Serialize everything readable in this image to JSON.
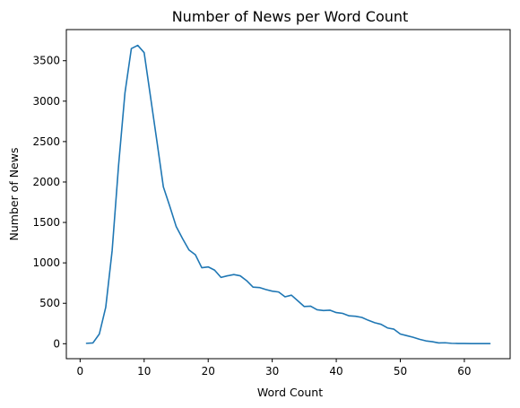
{
  "chart_data": {
    "type": "line",
    "title": "Number of News per Word Count",
    "xlabel": "Word Count",
    "ylabel": "Number of News",
    "xlim": [
      -2.15,
      67.15
    ],
    "ylim": [
      -185,
      3885
    ],
    "xticks": [
      0,
      10,
      20,
      30,
      40,
      50,
      60
    ],
    "yticks": [
      0,
      500,
      1000,
      1500,
      2000,
      2500,
      3000,
      3500
    ],
    "grid": false,
    "line_color": "#1f77b4",
    "series": [
      {
        "x": [
          1,
          2,
          3,
          4,
          5,
          6,
          7,
          8,
          9,
          10,
          11,
          12,
          13,
          14,
          15,
          16,
          17,
          18,
          19,
          20,
          21,
          22,
          23,
          24,
          25,
          26,
          27,
          28,
          29,
          30,
          31,
          32,
          33,
          34,
          35,
          36,
          37,
          38,
          39,
          40,
          41,
          42,
          43,
          44,
          45,
          46,
          47,
          48,
          49,
          50,
          51,
          52,
          53,
          54,
          55,
          56,
          57,
          58,
          59,
          60,
          61,
          62,
          63,
          64
        ],
        "y": [
          5,
          10,
          120,
          450,
          1150,
          2200,
          3100,
          3650,
          3690,
          3600,
          3050,
          2500,
          1940,
          1700,
          1450,
          1300,
          1160,
          1100,
          940,
          950,
          910,
          820,
          840,
          855,
          840,
          780,
          700,
          695,
          670,
          650,
          640,
          580,
          600,
          530,
          460,
          465,
          420,
          410,
          415,
          385,
          375,
          345,
          340,
          325,
          290,
          260,
          240,
          195,
          180,
          120,
          100,
          80,
          55,
          35,
          25,
          10,
          12,
          5,
          3,
          3,
          2,
          1,
          2,
          2
        ]
      }
    ]
  }
}
